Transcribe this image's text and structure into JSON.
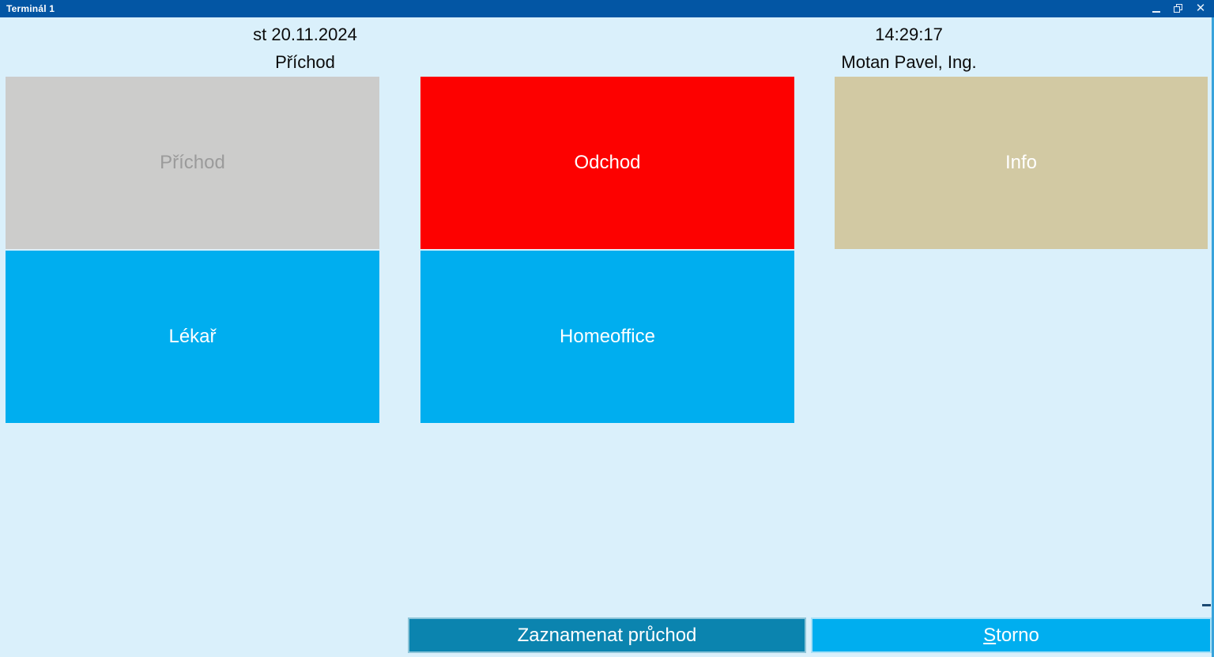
{
  "window": {
    "title": "Terminál 1",
    "controls": {
      "minimize": "minimize-window",
      "restore": "restore-window",
      "close": "close-window"
    }
  },
  "header": {
    "date": "st 20.11.2024",
    "mode": "Příchod",
    "time": "14:29:17",
    "user": "Motan Pavel, Ing."
  },
  "action_buttons": {
    "prichod": {
      "label": "Příchod",
      "state": "disabled",
      "bg": "#cccccb",
      "fg": "#9b9b9b"
    },
    "odchod": {
      "label": "Odchod",
      "state": "enabled",
      "bg": "#fd0100",
      "fg": "#ffffff"
    },
    "info": {
      "label": "Info",
      "state": "enabled",
      "bg": "#d2c9a3",
      "fg": "#ffffff"
    },
    "lekar": {
      "label": "Lékař",
      "state": "enabled",
      "bg": "#00aeef",
      "fg": "#ffffff"
    },
    "homeoffice": {
      "label": "Homeoffice",
      "state": "enabled",
      "bg": "#00aeef",
      "fg": "#ffffff"
    }
  },
  "footer": {
    "record_label": "Zaznamenat průchod",
    "cancel_mnemonic": "S",
    "cancel_rest": "torno",
    "record_bg": "#0b84af",
    "cancel_bg": "#00aeef"
  },
  "colors": {
    "titlebar": "#0356a4",
    "titlebar_text": "#ffffff",
    "background": "#daf0fb",
    "header_text": "#0b0b0b",
    "window_right_border": "#38a3dc"
  }
}
